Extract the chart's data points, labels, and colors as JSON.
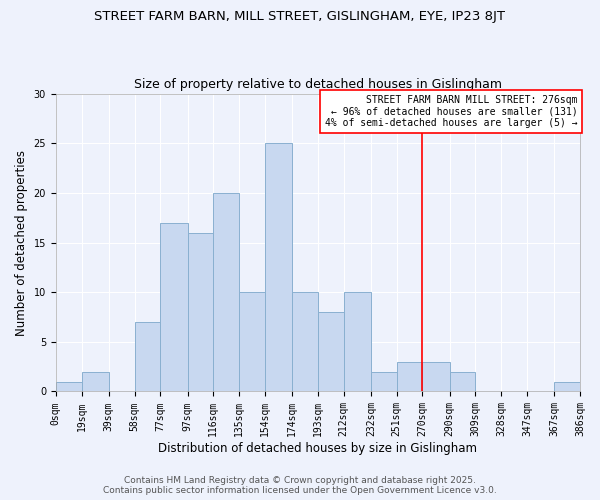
{
  "title": "STREET FARM BARN, MILL STREET, GISLINGHAM, EYE, IP23 8JT",
  "subtitle": "Size of property relative to detached houses in Gislingham",
  "xlabel": "Distribution of detached houses by size in Gislingham",
  "ylabel": "Number of detached properties",
  "bin_edges": [
    0,
    19,
    39,
    58,
    77,
    97,
    116,
    135,
    154,
    174,
    193,
    212,
    232,
    251,
    270,
    290,
    309,
    328,
    347,
    367,
    386
  ],
  "counts": [
    1,
    2,
    0,
    7,
    17,
    16,
    20,
    10,
    25,
    10,
    8,
    10,
    2,
    3,
    3,
    2,
    0,
    0,
    0,
    1
  ],
  "bar_color": "#c8d8f0",
  "bar_edge_color": "#8ab0d0",
  "vline_x": 270,
  "vline_color": "red",
  "annotation_line1": "STREET FARM BARN MILL STREET: 276sqm",
  "annotation_line2": "← 96% of detached houses are smaller (131)",
  "annotation_line3": "4% of semi-detached houses are larger (5) →",
  "annotation_box_color": "white",
  "annotation_box_edge": "red",
  "ylim": [
    0,
    30
  ],
  "yticks": [
    0,
    5,
    10,
    15,
    20,
    25,
    30
  ],
  "footer1": "Contains HM Land Registry data © Crown copyright and database right 2025.",
  "footer2": "Contains public sector information licensed under the Open Government Licence v3.0.",
  "bg_color": "#eef2fc",
  "title_fontsize": 9.5,
  "subtitle_fontsize": 9,
  "label_fontsize": 8.5,
  "tick_fontsize": 7,
  "annotation_fontsize": 7,
  "footer_fontsize": 6.5
}
